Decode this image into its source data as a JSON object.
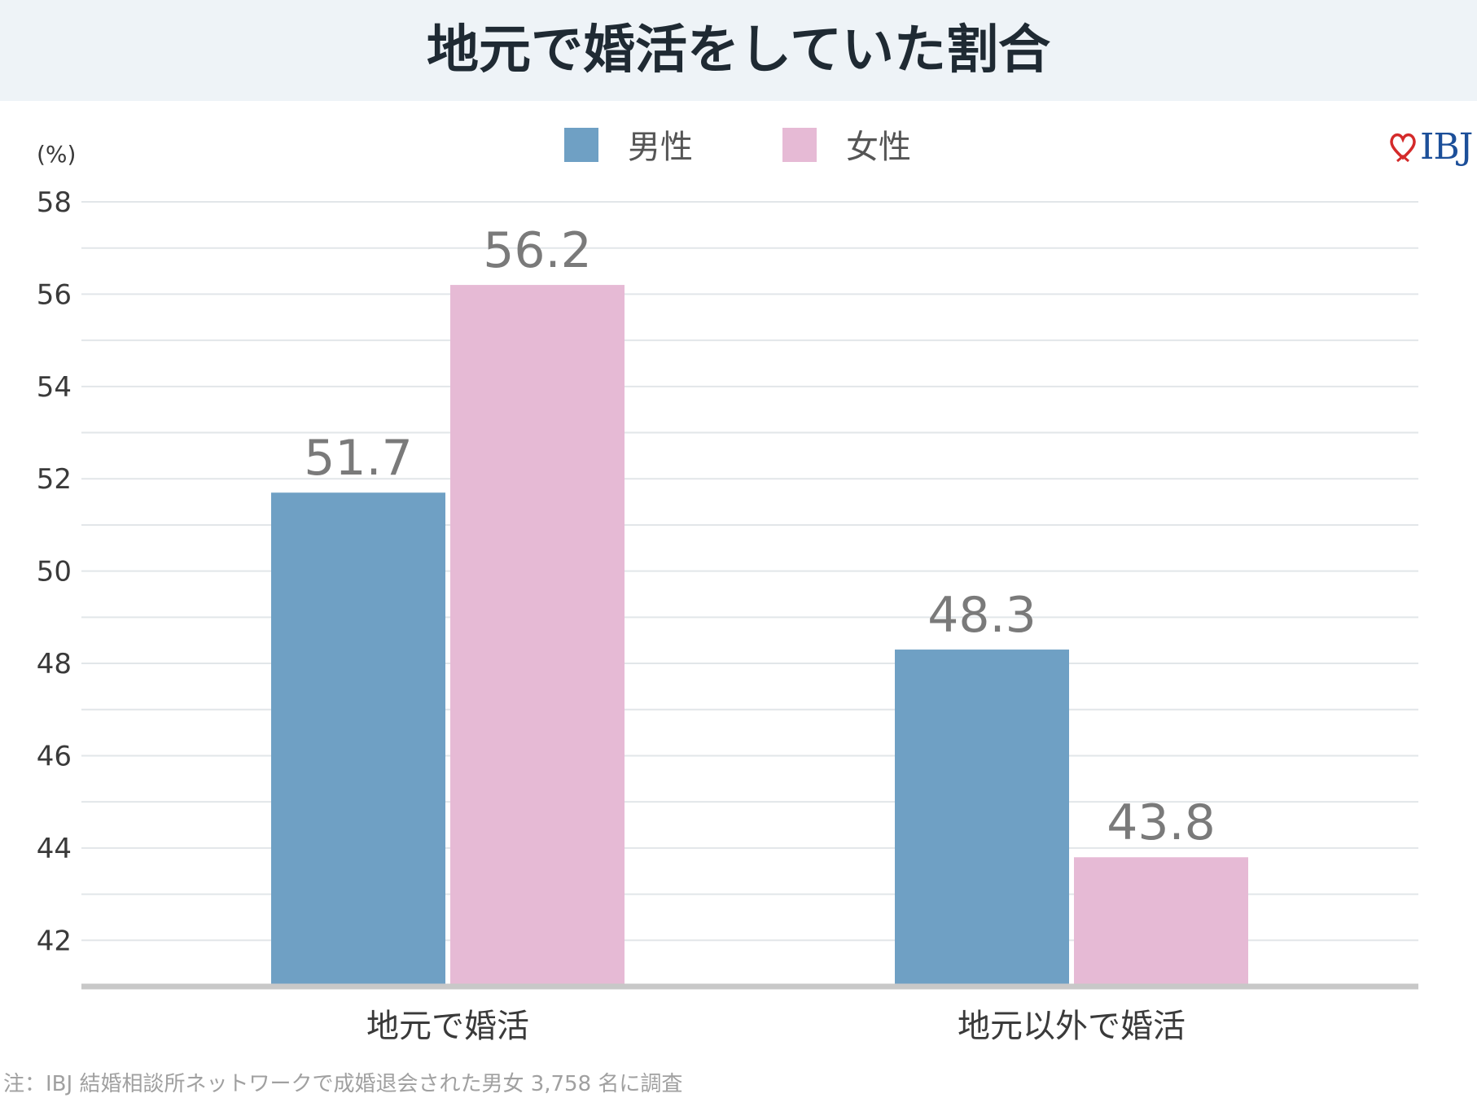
{
  "title": "地元で婚活をしていた割合",
  "logo_text": "IBJ",
  "footnote": "注：IBJ 結婚相談所ネットワークで成婚退会された男女 3,758 名に調査",
  "colors": {
    "male": "#6fa0c4",
    "female": "#e6bad5",
    "grid": "#e2e6e9",
    "axis": "#c8c8c8",
    "label": "#7a7a7a",
    "tick": "#3a3a3a",
    "logo_heart": "#d42a2a"
  },
  "chart_data": {
    "type": "bar",
    "title": "地元で婚活をしていた割合",
    "ylabel": "(%)",
    "xlabel": "",
    "categories": [
      "地元で婚活",
      "地元以外で婚活"
    ],
    "series": [
      {
        "name": "男性",
        "values": [
          51.7,
          48.3
        ],
        "labels": [
          "51.7",
          "48.3"
        ]
      },
      {
        "name": "女性",
        "values": [
          56.2,
          43.8
        ],
        "labels": [
          "56.2",
          "43.8"
        ]
      }
    ],
    "ylim": [
      41,
      58
    ],
    "yticks": [
      42,
      44,
      46,
      48,
      50,
      52,
      54,
      56,
      58
    ],
    "grid": true,
    "legend": "top-center"
  }
}
